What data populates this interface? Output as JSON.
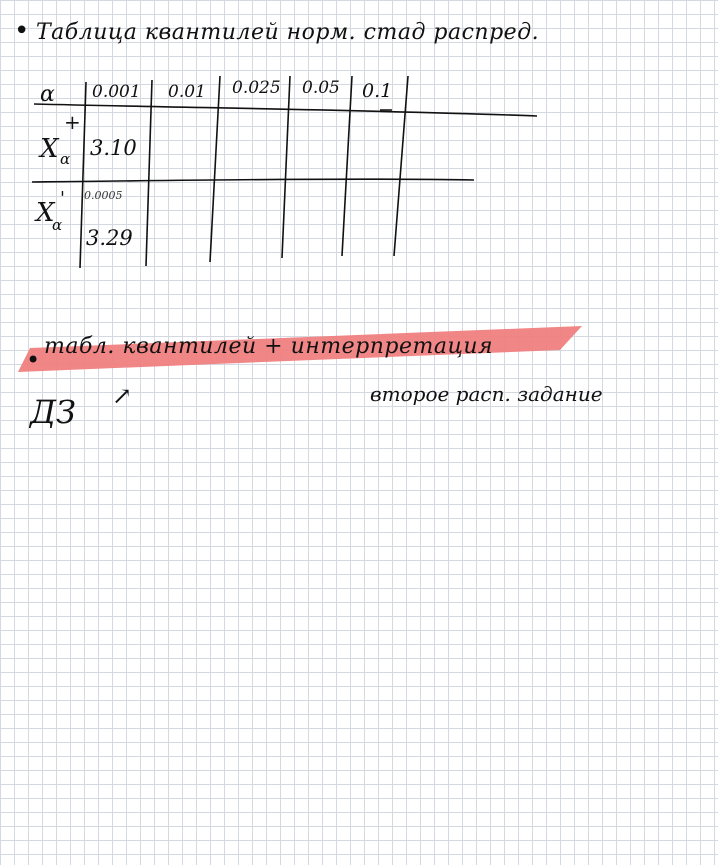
{
  "colors": {
    "ink": "#111111",
    "highlight": "#f08080",
    "grid": "#d4d8e0"
  },
  "heading": {
    "bullet": "•",
    "text": "Таблица квантилей норм. стад распред."
  },
  "table": {
    "alpha_label": "α",
    "columns": [
      "0.001",
      "0.01",
      "0.025",
      "0.05",
      "0.1"
    ],
    "rows": [
      {
        "label": "X",
        "sub": "α",
        "sup": "+",
        "value": "3.10"
      },
      {
        "label": "X",
        "sub": "α",
        "sup": "'",
        "small_note": "0.0005",
        "value": "3.29"
      }
    ]
  },
  "highlight": {
    "bullet": "•",
    "text": "табл. квантилей + интерпретация"
  },
  "homework": {
    "label": "ДЗ",
    "arrow": "↗",
    "note": "второе расп. задание"
  }
}
